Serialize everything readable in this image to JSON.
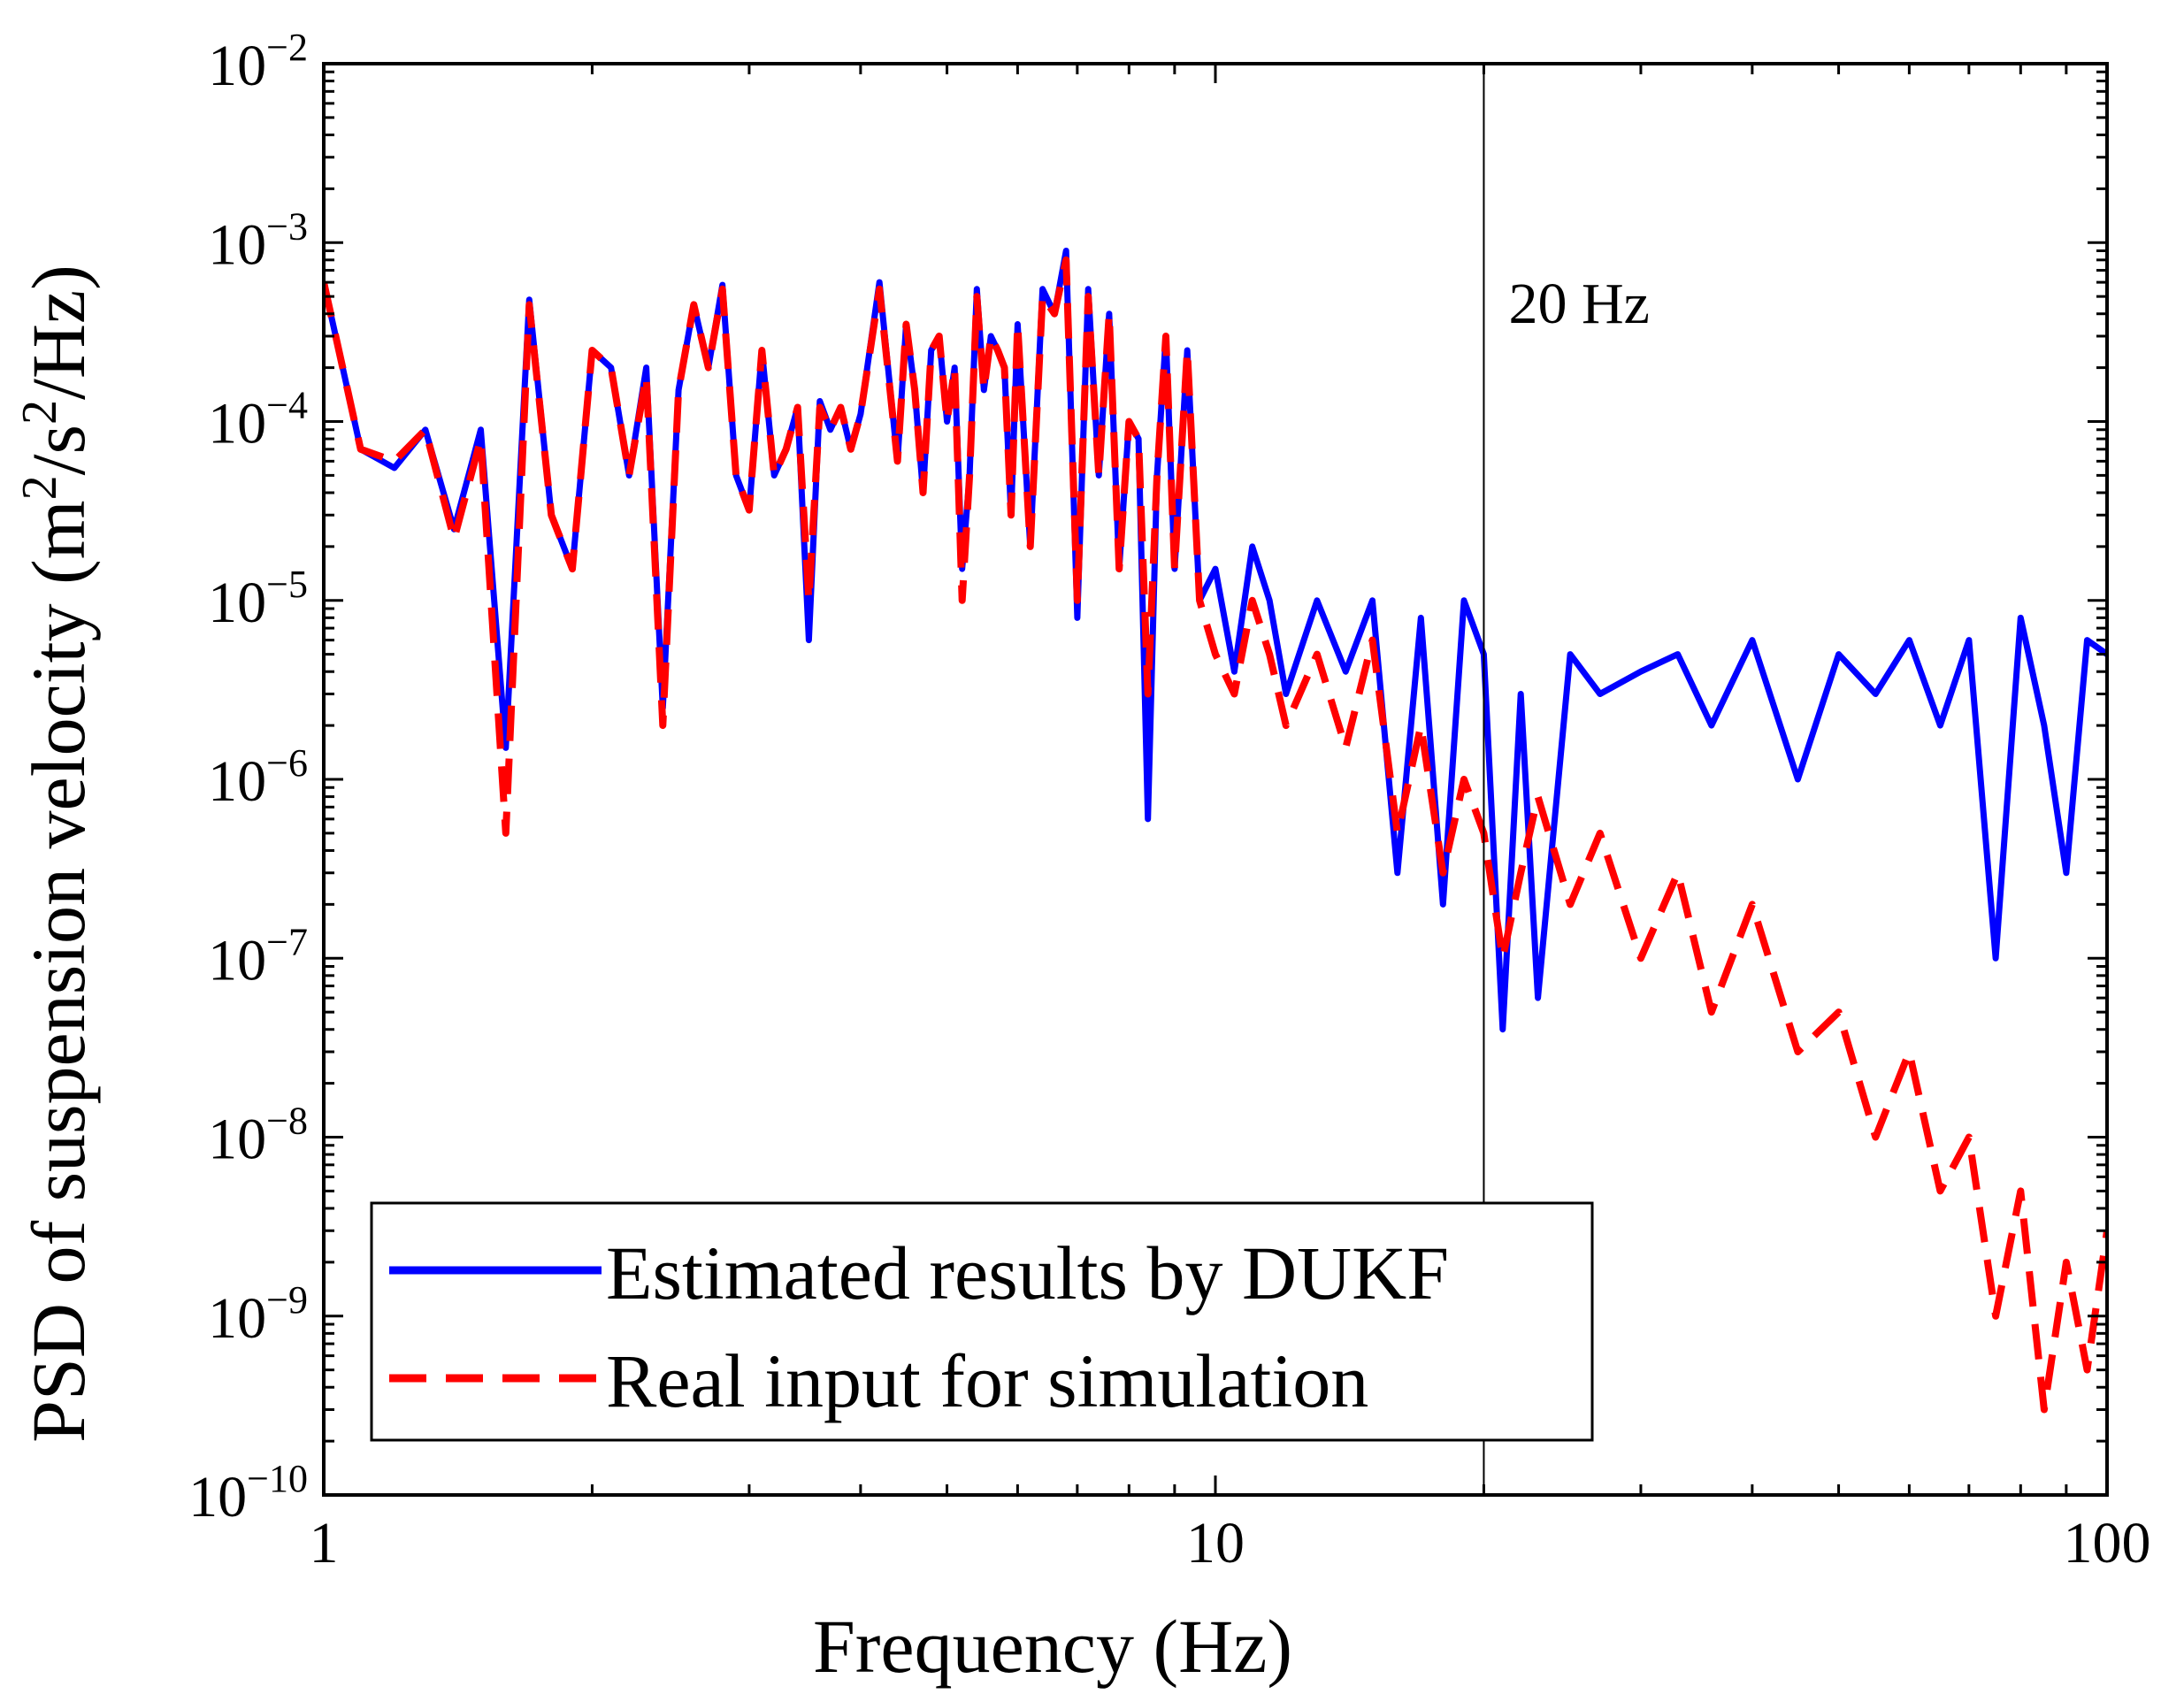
{
  "chart_data": {
    "type": "line",
    "title": "",
    "xlabel": "Frequency (Hz)",
    "ylabel": {
      "prefix": "PSD of suspension velocity (m",
      "sup1": "2",
      "mid": "/s",
      "sup2": "2",
      "suffix": "/Hz)"
    },
    "xscale": "log",
    "yscale": "log",
    "xlim": [
      1,
      100
    ],
    "ylim": [
      1e-10,
      0.01
    ],
    "x_ticks": [
      {
        "value": 1,
        "label": "1"
      },
      {
        "value": 10,
        "label": "10"
      },
      {
        "value": 100,
        "label": "100"
      }
    ],
    "y_ticks": [
      {
        "value": 0.01,
        "base": "10",
        "exp": "−2"
      },
      {
        "value": 0.001,
        "base": "10",
        "exp": "−3"
      },
      {
        "value": 0.0001,
        "base": "10",
        "exp": "−4"
      },
      {
        "value": 1e-05,
        "base": "10",
        "exp": "−5"
      },
      {
        "value": 1e-06,
        "base": "10",
        "exp": "−6"
      },
      {
        "value": 1e-07,
        "base": "10",
        "exp": "−7"
      },
      {
        "value": 1e-08,
        "base": "10",
        "exp": "−8"
      },
      {
        "value": 1e-09,
        "base": "10",
        "exp": "−9"
      },
      {
        "value": 1e-10,
        "base": "10",
        "exp": "−10"
      }
    ],
    "vline": {
      "x": 20,
      "label": "20  Hz"
    },
    "legend": {
      "position": "bottom-left",
      "entries": [
        {
          "name": "Estimated results by DUKF",
          "color": "#0000ff",
          "style": "solid"
        },
        {
          "name": "Real input for simulation",
          "color": "#ff0000",
          "style": "dashed"
        }
      ]
    },
    "series": [
      {
        "name": "Estimated results by DUKF",
        "color": "#0000ff",
        "style": "solid",
        "x": [
          1.0,
          1.05,
          1.1,
          1.2,
          1.3,
          1.4,
          1.5,
          1.6,
          1.7,
          1.8,
          1.9,
          2.0,
          2.1,
          2.2,
          2.3,
          2.4,
          2.5,
          2.6,
          2.7,
          2.8,
          2.9,
          3.0,
          3.1,
          3.2,
          3.3,
          3.4,
          3.5,
          3.6,
          3.7,
          3.8,
          3.9,
          4.0,
          4.2,
          4.4,
          4.5,
          4.6,
          4.7,
          4.8,
          4.9,
          5.0,
          5.1,
          5.2,
          5.3,
          5.4,
          5.5,
          5.6,
          5.7,
          5.8,
          5.9,
          6.0,
          6.2,
          6.4,
          6.6,
          6.8,
          7.0,
          7.2,
          7.4,
          7.6,
          7.8,
          8.0,
          8.2,
          8.4,
          8.6,
          8.8,
          9.0,
          9.3,
          9.6,
          10.0,
          10.5,
          11.0,
          11.5,
          12.0,
          13.0,
          14.0,
          15.0,
          16.0,
          17.0,
          18.0,
          19.0,
          20.0,
          21.0,
          22.0,
          23.0,
          25.0,
          27.0,
          30.0,
          33.0,
          36.0,
          40.0,
          45.0,
          50.0,
          55.0,
          60.0,
          65.0,
          70.0,
          75.0,
          80.0,
          85.0,
          90.0,
          95.0,
          100.0
        ],
        "y": [
          0.0006,
          0.0002,
          7e-05,
          5.5e-05,
          9e-05,
          2.5e-05,
          9e-05,
          1.5e-06,
          0.00048,
          3e-05,
          1.5e-05,
          0.00025,
          0.0002,
          5e-05,
          0.0002,
          2.5e-06,
          0.00015,
          0.00045,
          0.0002,
          0.00058,
          5e-05,
          3.2e-05,
          0.00025,
          5e-05,
          7e-05,
          0.00012,
          6e-06,
          0.00013,
          9e-05,
          0.00012,
          7e-05,
          0.00011,
          0.0006,
          6e-05,
          0.00035,
          0.00015,
          4e-05,
          0.00025,
          0.0003,
          0.0001,
          0.0002,
          1.5e-05,
          5e-05,
          0.00055,
          0.00015,
          0.0003,
          0.00025,
          0.0002,
          3e-05,
          0.00035,
          2e-05,
          0.00055,
          0.0004,
          0.0009,
          8e-06,
          0.00055,
          5e-05,
          0.0004,
          1.5e-05,
          0.0001,
          8e-05,
          6e-07,
          5e-05,
          0.0003,
          1.5e-05,
          0.00025,
          1e-05,
          1.5e-05,
          4e-06,
          2e-05,
          1e-05,
          3e-06,
          1e-05,
          4e-06,
          1e-05,
          3e-07,
          8e-06,
          2e-07,
          1e-05,
          5e-06,
          4e-08,
          3e-06,
          6e-08,
          5e-06,
          3e-06,
          4e-06,
          5e-06,
          2e-06,
          6e-06,
          1e-06,
          5e-06,
          3e-06,
          6e-06,
          2e-06,
          6e-06,
          1e-07,
          8e-06,
          2e-06,
          3e-07,
          6e-06,
          5e-06
        ]
      },
      {
        "name": "Real input for simulation",
        "color": "#ff0000",
        "style": "dashed",
        "x": [
          1.0,
          1.05,
          1.1,
          1.2,
          1.3,
          1.4,
          1.5,
          1.6,
          1.7,
          1.8,
          1.9,
          2.0,
          2.1,
          2.2,
          2.3,
          2.4,
          2.5,
          2.6,
          2.7,
          2.8,
          2.9,
          3.0,
          3.1,
          3.2,
          3.3,
          3.4,
          3.5,
          3.6,
          3.7,
          3.8,
          3.9,
          4.0,
          4.2,
          4.4,
          4.5,
          4.6,
          4.7,
          4.8,
          4.9,
          5.0,
          5.1,
          5.2,
          5.3,
          5.4,
          5.5,
          5.6,
          5.7,
          5.8,
          5.9,
          6.0,
          6.2,
          6.4,
          6.6,
          6.8,
          7.0,
          7.2,
          7.4,
          7.6,
          7.8,
          8.0,
          8.2,
          8.4,
          8.6,
          8.8,
          9.0,
          9.3,
          9.6,
          10.0,
          10.5,
          11.0,
          11.5,
          12.0,
          13.0,
          14.0,
          15.0,
          16.0,
          17.0,
          18.0,
          19.0,
          20.0,
          21.0,
          22.0,
          23.0,
          25.0,
          27.0,
          30.0,
          33.0,
          36.0,
          40.0,
          45.0,
          50.0,
          55.0,
          60.0,
          65.0,
          70.0,
          75.0,
          80.0,
          85.0,
          90.0,
          95.0,
          100.0
        ],
        "y": [
          0.0006,
          0.0002,
          7e-05,
          6e-05,
          9e-05,
          2.2e-05,
          8e-05,
          5e-07,
          0.00045,
          3e-05,
          1.5e-05,
          0.00025,
          0.0002,
          5e-05,
          0.00018,
          2e-06,
          0.00015,
          0.00045,
          0.0002,
          0.00055,
          5e-05,
          3.2e-05,
          0.00025,
          5e-05,
          7e-05,
          0.00012,
          1e-05,
          0.00012,
          9e-05,
          0.00012,
          7e-05,
          0.00011,
          0.00055,
          6e-05,
          0.00035,
          0.00015,
          4e-05,
          0.00025,
          0.0003,
          0.0001,
          0.0002,
          1e-05,
          5e-05,
          0.0005,
          0.00015,
          0.0003,
          0.00025,
          0.0002,
          3e-05,
          0.00035,
          2e-05,
          0.0005,
          0.0004,
          0.0008,
          1e-05,
          0.0005,
          5e-05,
          0.0004,
          1.5e-05,
          0.0001,
          8e-05,
          3e-06,
          5e-05,
          0.0003,
          1.5e-05,
          0.00025,
          1e-05,
          5e-06,
          3e-06,
          1e-05,
          5e-06,
          2e-06,
          5e-06,
          1.5e-06,
          6e-06,
          5e-07,
          2e-06,
          3e-07,
          1e-06,
          5e-07,
          1e-07,
          3e-07,
          8e-07,
          2e-07,
          5e-07,
          1e-07,
          3e-07,
          5e-08,
          2e-07,
          3e-08,
          5e-08,
          1e-08,
          3e-08,
          5e-09,
          1e-08,
          1e-09,
          5e-09,
          3e-10,
          2e-09,
          5e-10,
          3e-09
        ]
      }
    ]
  }
}
